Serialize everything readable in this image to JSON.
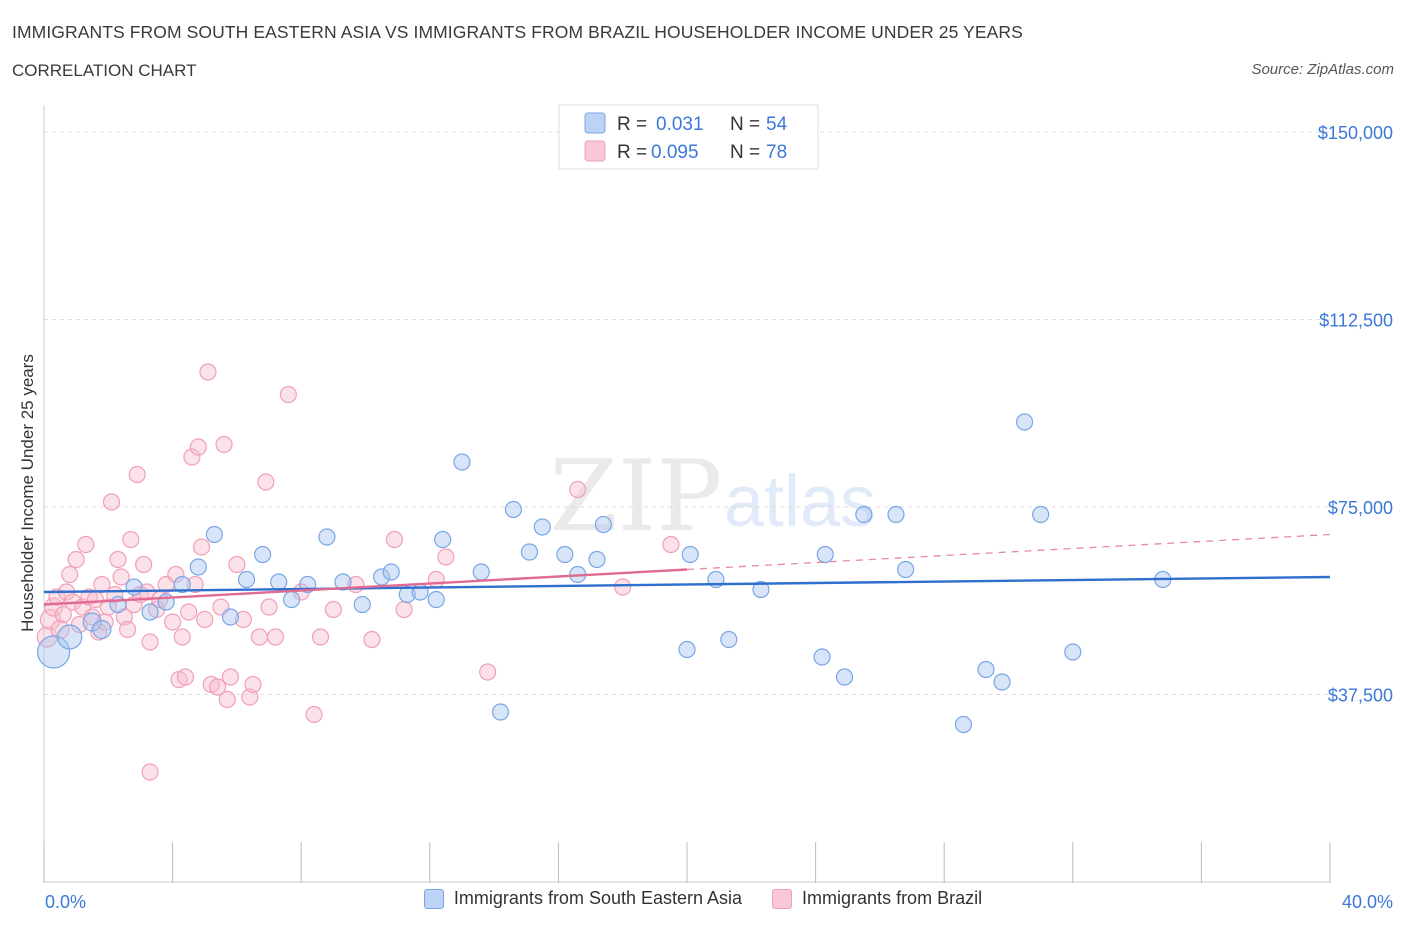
{
  "header": {
    "title": "IMMIGRANTS FROM SOUTH EASTERN ASIA VS IMMIGRANTS FROM BRAZIL HOUSEHOLDER INCOME UNDER 25 YEARS",
    "subtitle": "CORRELATION CHART",
    "source": "Source: ZipAtlas.com"
  },
  "watermark": {
    "zip": "ZIP",
    "atlas": "atlas"
  },
  "chart_data": {
    "type": "scatter",
    "ylabel": "Householder Income Under 25 years",
    "xlim": [
      0,
      40
    ],
    "ylim": [
      0,
      150000
    ],
    "y_ticks": [
      {
        "value": 37500,
        "label": "$37,500"
      },
      {
        "value": 75000,
        "label": "$75,000"
      },
      {
        "value": 112500,
        "label": "$112,500"
      },
      {
        "value": 150000,
        "label": "$150,000"
      }
    ],
    "x_tick_labels": {
      "min": "0.0%",
      "max": "40.0%"
    },
    "grid": true,
    "legend_position": "top-center",
    "series": [
      {
        "name": "Immigrants from South Eastern Asia",
        "color": "#7aa6e6",
        "line_color": "#2f6fd0",
        "r_label": "R =",
        "r_value": "0.031",
        "n_label": "N =",
        "n_value": "54",
        "trend": {
          "x0": 0,
          "y0": 58000,
          "x1": 40,
          "y1": 61000
        },
        "points": [
          {
            "x": 0.3,
            "y": 46000,
            "s": 16
          },
          {
            "x": 0.8,
            "y": 49000,
            "s": 12
          },
          {
            "x": 1.5,
            "y": 52000,
            "s": 9
          },
          {
            "x": 1.8,
            "y": 50500,
            "s": 9
          },
          {
            "x": 2.3,
            "y": 55500,
            "s": 8
          },
          {
            "x": 2.8,
            "y": 59000,
            "s": 8
          },
          {
            "x": 3.3,
            "y": 54000,
            "s": 8
          },
          {
            "x": 3.8,
            "y": 56000,
            "s": 8
          },
          {
            "x": 4.3,
            "y": 59500,
            "s": 8
          },
          {
            "x": 4.8,
            "y": 63000,
            "s": 8
          },
          {
            "x": 5.3,
            "y": 69500,
            "s": 8
          },
          {
            "x": 5.8,
            "y": 53000,
            "s": 8
          },
          {
            "x": 6.3,
            "y": 60500,
            "s": 8
          },
          {
            "x": 6.8,
            "y": 65500,
            "s": 8
          },
          {
            "x": 7.3,
            "y": 60000,
            "s": 8
          },
          {
            "x": 7.7,
            "y": 56500,
            "s": 8
          },
          {
            "x": 8.2,
            "y": 59500,
            "s": 8
          },
          {
            "x": 8.8,
            "y": 69000,
            "s": 8
          },
          {
            "x": 9.3,
            "y": 60000,
            "s": 8
          },
          {
            "x": 9.9,
            "y": 55500,
            "s": 8
          },
          {
            "x": 10.5,
            "y": 61000,
            "s": 8
          },
          {
            "x": 10.8,
            "y": 62000,
            "s": 8
          },
          {
            "x": 11.3,
            "y": 57500,
            "s": 8
          },
          {
            "x": 11.7,
            "y": 58000,
            "s": 8
          },
          {
            "x": 12.2,
            "y": 56500,
            "s": 8
          },
          {
            "x": 12.4,
            "y": 68500,
            "s": 8
          },
          {
            "x": 13.0,
            "y": 84000,
            "s": 8
          },
          {
            "x": 13.6,
            "y": 62000,
            "s": 8
          },
          {
            "x": 14.2,
            "y": 34000,
            "s": 8
          },
          {
            "x": 14.6,
            "y": 74500,
            "s": 8
          },
          {
            "x": 15.1,
            "y": 66000,
            "s": 8
          },
          {
            "x": 15.5,
            "y": 71000,
            "s": 8
          },
          {
            "x": 16.2,
            "y": 65500,
            "s": 8
          },
          {
            "x": 16.6,
            "y": 61500,
            "s": 8
          },
          {
            "x": 17.2,
            "y": 64500,
            "s": 8
          },
          {
            "x": 17.4,
            "y": 71500,
            "s": 8
          },
          {
            "x": 20.0,
            "y": 46500,
            "s": 8
          },
          {
            "x": 20.1,
            "y": 65500,
            "s": 8
          },
          {
            "x": 20.9,
            "y": 60500,
            "s": 8
          },
          {
            "x": 21.3,
            "y": 48500,
            "s": 8
          },
          {
            "x": 22.3,
            "y": 58500,
            "s": 8
          },
          {
            "x": 24.2,
            "y": 45000,
            "s": 8
          },
          {
            "x": 24.3,
            "y": 65500,
            "s": 8
          },
          {
            "x": 24.9,
            "y": 41000,
            "s": 8
          },
          {
            "x": 25.5,
            "y": 73500,
            "s": 8
          },
          {
            "x": 26.5,
            "y": 73500,
            "s": 8
          },
          {
            "x": 26.8,
            "y": 62500,
            "s": 8
          },
          {
            "x": 28.6,
            "y": 31500,
            "s": 8
          },
          {
            "x": 29.3,
            "y": 42500,
            "s": 8
          },
          {
            "x": 29.8,
            "y": 40000,
            "s": 8
          },
          {
            "x": 30.5,
            "y": 92000,
            "s": 8
          },
          {
            "x": 31.0,
            "y": 73500,
            "s": 8
          },
          {
            "x": 32.0,
            "y": 46000,
            "s": 8
          },
          {
            "x": 34.8,
            "y": 60500,
            "s": 8
          }
        ]
      },
      {
        "name": "Immigrants from Brazil",
        "color": "#f0a0b8",
        "line_color": "#e06a92",
        "r_label": "R =",
        "r_value": "0.095",
        "n_label": "N =",
        "n_value": "78",
        "trend": {
          "x0": 0,
          "y0": 55500,
          "x1": 20,
          "y1": 62500
        },
        "trend_extension": {
          "x0": 20,
          "y0": 62500,
          "x1": 40,
          "y1": 69500
        },
        "points": [
          {
            "x": 0.1,
            "y": 49000,
            "s": 10
          },
          {
            "x": 0.2,
            "y": 52500,
            "s": 10
          },
          {
            "x": 0.3,
            "y": 55000,
            "s": 9
          },
          {
            "x": 0.4,
            "y": 57000,
            "s": 8
          },
          {
            "x": 0.5,
            "y": 50500,
            "s": 9
          },
          {
            "x": 0.6,
            "y": 53500,
            "s": 8
          },
          {
            "x": 0.7,
            "y": 58000,
            "s": 8
          },
          {
            "x": 0.8,
            "y": 61500,
            "s": 8
          },
          {
            "x": 0.9,
            "y": 56000,
            "s": 8
          },
          {
            "x": 1.0,
            "y": 64500,
            "s": 8
          },
          {
            "x": 1.1,
            "y": 51500,
            "s": 8
          },
          {
            "x": 1.2,
            "y": 55000,
            "s": 8
          },
          {
            "x": 1.3,
            "y": 67500,
            "s": 8
          },
          {
            "x": 1.4,
            "y": 57000,
            "s": 8
          },
          {
            "x": 1.5,
            "y": 53000,
            "s": 8
          },
          {
            "x": 1.6,
            "y": 56500,
            "s": 8
          },
          {
            "x": 1.7,
            "y": 50000,
            "s": 8
          },
          {
            "x": 1.8,
            "y": 59500,
            "s": 8
          },
          {
            "x": 1.9,
            "y": 52000,
            "s": 8
          },
          {
            "x": 2.0,
            "y": 55000,
            "s": 8
          },
          {
            "x": 2.1,
            "y": 76000,
            "s": 8
          },
          {
            "x": 2.2,
            "y": 57500,
            "s": 8
          },
          {
            "x": 2.3,
            "y": 64500,
            "s": 8
          },
          {
            "x": 2.4,
            "y": 61000,
            "s": 8
          },
          {
            "x": 2.5,
            "y": 53000,
            "s": 8
          },
          {
            "x": 2.6,
            "y": 50500,
            "s": 8
          },
          {
            "x": 2.7,
            "y": 68500,
            "s": 8
          },
          {
            "x": 2.8,
            "y": 55500,
            "s": 8
          },
          {
            "x": 2.9,
            "y": 81500,
            "s": 8
          },
          {
            "x": 3.0,
            "y": 57500,
            "s": 8
          },
          {
            "x": 3.1,
            "y": 63500,
            "s": 8
          },
          {
            "x": 3.2,
            "y": 58000,
            "s": 8
          },
          {
            "x": 3.3,
            "y": 48000,
            "s": 8
          },
          {
            "x": 3.3,
            "y": 22000,
            "s": 8
          },
          {
            "x": 3.5,
            "y": 54500,
            "s": 8
          },
          {
            "x": 3.6,
            "y": 56500,
            "s": 8
          },
          {
            "x": 3.8,
            "y": 59500,
            "s": 8
          },
          {
            "x": 4.0,
            "y": 52000,
            "s": 8
          },
          {
            "x": 4.1,
            "y": 61500,
            "s": 8
          },
          {
            "x": 4.2,
            "y": 40500,
            "s": 8
          },
          {
            "x": 4.3,
            "y": 49000,
            "s": 8
          },
          {
            "x": 4.4,
            "y": 41000,
            "s": 8
          },
          {
            "x": 4.5,
            "y": 54000,
            "s": 8
          },
          {
            "x": 4.6,
            "y": 85000,
            "s": 8
          },
          {
            "x": 4.7,
            "y": 59500,
            "s": 8
          },
          {
            "x": 4.8,
            "y": 87000,
            "s": 8
          },
          {
            "x": 4.9,
            "y": 67000,
            "s": 8
          },
          {
            "x": 5.0,
            "y": 52500,
            "s": 8
          },
          {
            "x": 5.1,
            "y": 102000,
            "s": 8
          },
          {
            "x": 5.2,
            "y": 39500,
            "s": 8
          },
          {
            "x": 5.4,
            "y": 39000,
            "s": 8
          },
          {
            "x": 5.5,
            "y": 55000,
            "s": 8
          },
          {
            "x": 5.6,
            "y": 87500,
            "s": 8
          },
          {
            "x": 5.7,
            "y": 36500,
            "s": 8
          },
          {
            "x": 5.8,
            "y": 41000,
            "s": 8
          },
          {
            "x": 6.0,
            "y": 63500,
            "s": 8
          },
          {
            "x": 6.2,
            "y": 52500,
            "s": 8
          },
          {
            "x": 6.4,
            "y": 37000,
            "s": 8
          },
          {
            "x": 6.5,
            "y": 39500,
            "s": 8
          },
          {
            "x": 6.7,
            "y": 49000,
            "s": 8
          },
          {
            "x": 6.9,
            "y": 80000,
            "s": 8
          },
          {
            "x": 7.0,
            "y": 55000,
            "s": 8
          },
          {
            "x": 7.2,
            "y": 49000,
            "s": 8
          },
          {
            "x": 7.6,
            "y": 97500,
            "s": 8
          },
          {
            "x": 8.0,
            "y": 58000,
            "s": 8
          },
          {
            "x": 8.4,
            "y": 33500,
            "s": 8
          },
          {
            "x": 8.6,
            "y": 49000,
            "s": 8
          },
          {
            "x": 9.0,
            "y": 54500,
            "s": 8
          },
          {
            "x": 9.7,
            "y": 59500,
            "s": 8
          },
          {
            "x": 10.2,
            "y": 48500,
            "s": 8
          },
          {
            "x": 10.9,
            "y": 68500,
            "s": 8
          },
          {
            "x": 11.2,
            "y": 54500,
            "s": 8
          },
          {
            "x": 12.2,
            "y": 60500,
            "s": 8
          },
          {
            "x": 12.5,
            "y": 65000,
            "s": 8
          },
          {
            "x": 13.8,
            "y": 42000,
            "s": 8
          },
          {
            "x": 16.6,
            "y": 78500,
            "s": 8
          },
          {
            "x": 18.0,
            "y": 59000,
            "s": 8
          },
          {
            "x": 19.5,
            "y": 67500,
            "s": 8
          }
        ]
      }
    ]
  }
}
